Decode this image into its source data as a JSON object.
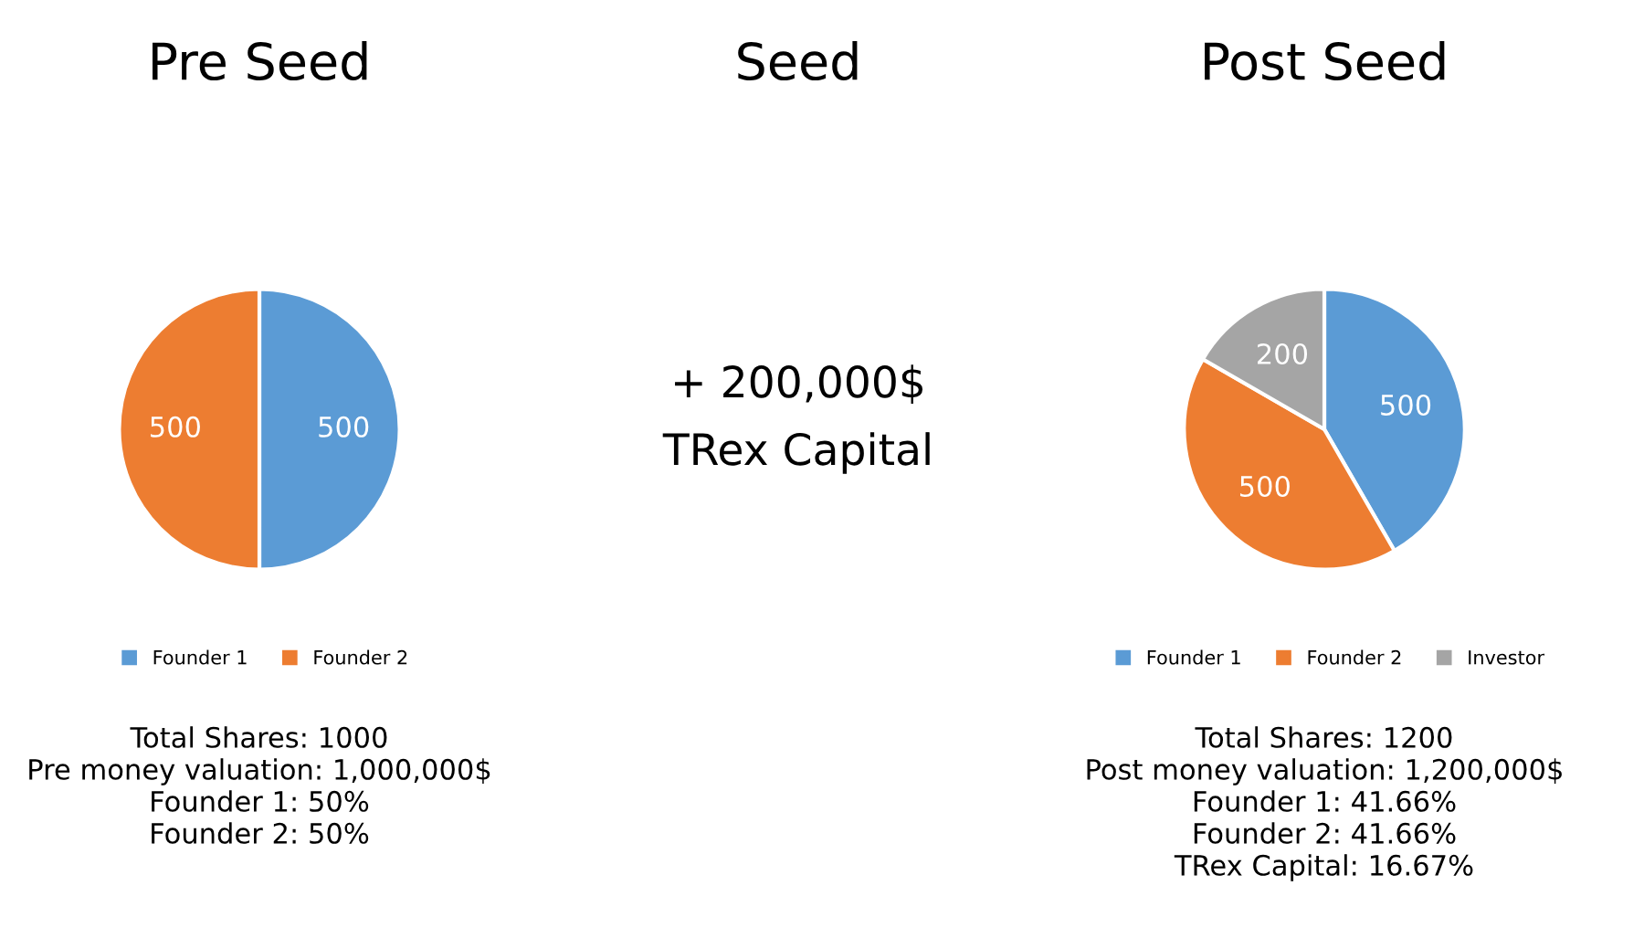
{
  "chart_data": [
    {
      "type": "pie",
      "title": "Pre Seed",
      "categories": [
        "Founder 1",
        "Founder 2"
      ],
      "values": [
        500,
        500
      ],
      "colors": [
        "#5b9bd5",
        "#ed7d31"
      ],
      "data_labels": true,
      "legend": "bottom",
      "annotations": [
        "Total Shares: 1000",
        "Pre money valuation: 1,000,000$",
        "Founder 1: 50%",
        "Founder 2: 50%"
      ]
    },
    {
      "type": "other",
      "title": "Seed",
      "annotations": [
        "+ 200,000$",
        "TRex Capital"
      ]
    },
    {
      "type": "pie",
      "title": "Post Seed",
      "categories": [
        "Founder 1",
        "Founder 2",
        "Investor"
      ],
      "values": [
        500,
        500,
        200
      ],
      "colors": [
        "#5b9bd5",
        "#ed7d31",
        "#a5a5a5"
      ],
      "data_labels": true,
      "legend": "bottom",
      "annotations": [
        "Total Shares: 1200",
        "Post money valuation: 1,200,000$",
        "Founder 1: 41.66%",
        "Founder 2: 41.66%",
        "TRex Capital: 16.67%"
      ]
    }
  ]
}
